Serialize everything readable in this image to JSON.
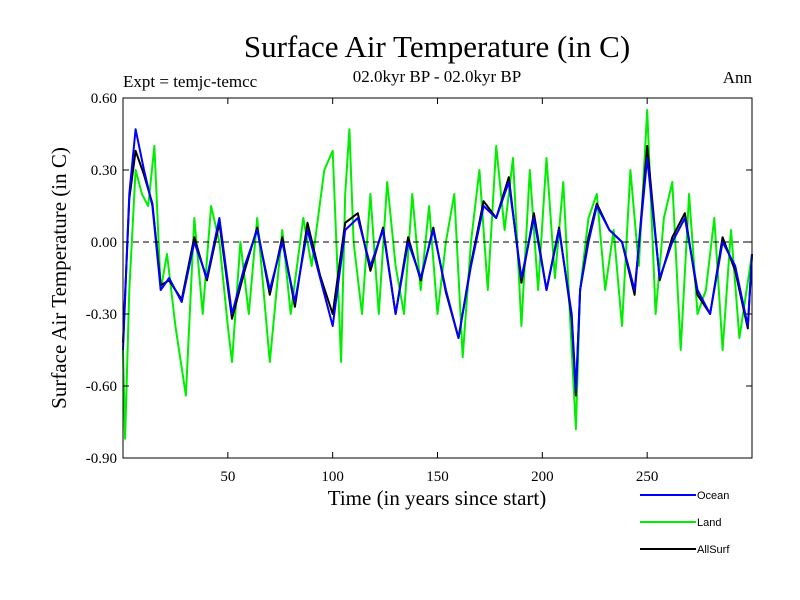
{
  "chart_data": {
    "type": "line",
    "title": "Surface Air Temperature (in C)",
    "subtitle": "02.0kyr BP - 02.0kyr BP",
    "left_label": "Expt = temjc-temcc",
    "right_label": "Ann",
    "xlabel": "Time (in years since start)",
    "ylabel": "Surface Air Temperature (in C)",
    "xlim": [
      0,
      300
    ],
    "ylim": [
      -0.9,
      0.6
    ],
    "x_ticks": [
      50,
      100,
      150,
      200,
      250
    ],
    "x_tick_labels": [
      "50",
      "100",
      "150",
      "200",
      "250"
    ],
    "y_ticks": [
      0.6,
      0.3,
      0.0,
      -0.3,
      -0.6,
      -0.9
    ],
    "y_tick_labels": [
      "0.60",
      "0.30",
      "0.00",
      "-0.30",
      "-0.60",
      "-0.90"
    ],
    "reference_line": 0,
    "series": [
      {
        "name": "Ocean",
        "color": "#0000ff",
        "x": [
          0,
          3,
          6,
          10,
          14,
          18,
          22,
          28,
          34,
          40,
          46,
          52,
          58,
          64,
          70,
          76,
          82,
          88,
          94,
          100,
          106,
          112,
          118,
          124,
          130,
          136,
          142,
          148,
          154,
          160,
          166,
          172,
          178,
          184,
          190,
          196,
          202,
          208,
          214,
          216,
          218,
          222,
          226,
          232,
          238,
          244,
          250,
          256,
          262,
          268,
          274,
          280,
          286,
          292,
          298,
          300
        ],
        "y": [
          -0.45,
          0.2,
          0.47,
          0.3,
          0.15,
          -0.2,
          -0.15,
          -0.25,
          0.0,
          -0.15,
          0.1,
          -0.3,
          -0.1,
          0.05,
          -0.2,
          0.0,
          -0.25,
          0.05,
          -0.15,
          -0.35,
          0.05,
          0.1,
          -0.1,
          0.05,
          -0.3,
          0.0,
          -0.15,
          0.05,
          -0.2,
          -0.4,
          -0.1,
          0.15,
          0.1,
          0.25,
          -0.15,
          0.1,
          -0.2,
          0.05,
          -0.3,
          -0.62,
          -0.2,
          0.0,
          0.15,
          0.05,
          0.0,
          -0.2,
          0.35,
          -0.15,
          0.0,
          0.1,
          -0.2,
          -0.3,
          0.0,
          -0.1,
          -0.35,
          -0.05
        ]
      },
      {
        "name": "Land",
        "color": "#00ee00",
        "x": [
          0,
          1,
          3,
          6,
          9,
          12,
          15,
          18,
          21,
          25,
          30,
          34,
          38,
          42,
          46,
          50,
          52,
          56,
          60,
          64,
          70,
          76,
          80,
          86,
          90,
          96,
          100,
          104,
          106,
          108,
          110,
          114,
          118,
          122,
          126,
          130,
          134,
          138,
          142,
          146,
          150,
          154,
          158,
          162,
          166,
          170,
          174,
          178,
          182,
          186,
          190,
          194,
          198,
          202,
          206,
          210,
          214,
          216,
          218,
          222,
          226,
          230,
          234,
          238,
          242,
          246,
          250,
          254,
          258,
          262,
          266,
          270,
          274,
          278,
          282,
          286,
          290,
          294,
          300
        ],
        "y": [
          -0.45,
          -0.82,
          -0.2,
          0.3,
          0.2,
          0.15,
          0.4,
          -0.2,
          -0.05,
          -0.35,
          -0.64,
          0.1,
          -0.3,
          0.15,
          0.0,
          -0.35,
          -0.5,
          0.0,
          -0.3,
          0.1,
          -0.5,
          0.05,
          -0.3,
          0.1,
          -0.1,
          0.3,
          0.38,
          -0.5,
          0.2,
          0.47,
          0.0,
          -0.3,
          0.2,
          -0.3,
          0.25,
          -0.1,
          -0.3,
          0.2,
          -0.2,
          0.15,
          -0.3,
          0.0,
          0.2,
          -0.48,
          0.0,
          0.3,
          -0.2,
          0.4,
          0.05,
          0.35,
          -0.35,
          0.3,
          -0.2,
          0.35,
          -0.15,
          0.25,
          -0.45,
          -0.78,
          -0.2,
          0.1,
          0.2,
          -0.2,
          0.05,
          -0.35,
          0.3,
          -0.1,
          0.55,
          -0.3,
          0.1,
          0.25,
          -0.45,
          0.2,
          -0.3,
          -0.2,
          0.1,
          -0.45,
          0.05,
          -0.4,
          -0.05
        ]
      },
      {
        "name": "AllSurf",
        "color": "#000000",
        "x": [
          0,
          3,
          6,
          10,
          14,
          18,
          22,
          28,
          34,
          40,
          46,
          52,
          58,
          64,
          70,
          76,
          82,
          88,
          94,
          100,
          106,
          112,
          118,
          124,
          130,
          136,
          142,
          148,
          154,
          160,
          166,
          172,
          178,
          184,
          190,
          196,
          202,
          208,
          214,
          216,
          218,
          222,
          226,
          232,
          238,
          244,
          250,
          256,
          262,
          268,
          274,
          280,
          286,
          292,
          298,
          300
        ],
        "y": [
          -0.42,
          0.18,
          0.38,
          0.28,
          0.16,
          -0.18,
          -0.16,
          -0.24,
          0.02,
          -0.16,
          0.08,
          -0.32,
          -0.12,
          0.06,
          -0.22,
          0.02,
          -0.27,
          0.08,
          -0.14,
          -0.3,
          0.08,
          0.12,
          -0.12,
          0.06,
          -0.3,
          0.02,
          -0.16,
          0.06,
          -0.21,
          -0.4,
          -0.09,
          0.17,
          0.1,
          0.27,
          -0.17,
          0.12,
          -0.2,
          0.06,
          -0.32,
          -0.64,
          -0.2,
          0.02,
          0.16,
          0.05,
          0.0,
          -0.22,
          0.4,
          -0.16,
          0.02,
          0.12,
          -0.22,
          -0.3,
          0.02,
          -0.12,
          -0.36,
          -0.05
        ]
      }
    ],
    "legend": {
      "position": "bottom-right",
      "items": [
        "Ocean",
        "Land",
        "AllSurf"
      ]
    }
  }
}
